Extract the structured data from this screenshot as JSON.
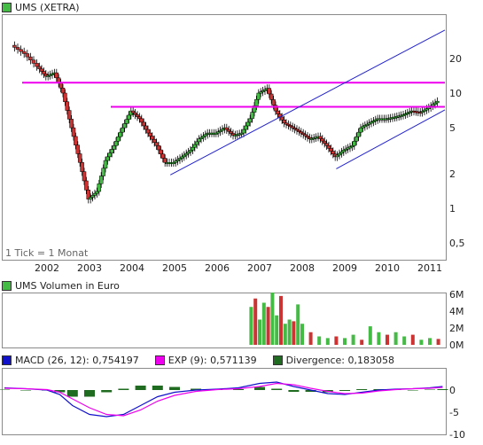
{
  "price_panel": {
    "legend": "UMS (XETRA)",
    "legend_color": "#44bb44",
    "note": "1 Tick = 1 Monat",
    "x_ticks": [
      "2002",
      "2003",
      "2004",
      "2005",
      "2006",
      "2007",
      "2008",
      "2009",
      "2010",
      "2011"
    ],
    "y_ticks": [
      "20",
      "10",
      "5",
      "2",
      "1",
      "0,5"
    ]
  },
  "volume_panel": {
    "legend": "UMS Volumen in Euro",
    "legend_color": "#44bb44",
    "y_ticks": [
      "6M",
      "4M",
      "2M",
      "0M"
    ]
  },
  "macd_panel": {
    "legend_items": [
      {
        "label": "MACD (26, 12): 0,754197",
        "color": "#1111cc"
      },
      {
        "label": "EXP (9): 0,571139",
        "color": "#ee00ee"
      },
      {
        "label": "Divergence: 0,183058",
        "color": "#1f6b1f"
      }
    ],
    "y_ticks": [
      "0",
      "-5",
      "-10"
    ]
  },
  "chart_data": [
    {
      "type": "candlestick",
      "title": "UMS (XETRA)",
      "scale": "log",
      "ylim": [
        0.4,
        40
      ],
      "x_categories": [
        "2002",
        "2003",
        "2004",
        "2005",
        "2006",
        "2007",
        "2008",
        "2009",
        "2010",
        "2011"
      ],
      "colors": {
        "up": "#44bb44",
        "down": "#cc3333"
      },
      "monthly_close": [
        [
          2001.2,
          26
        ],
        [
          2001.5,
          22
        ],
        [
          2001.8,
          17
        ],
        [
          2002.0,
          14
        ],
        [
          2002.2,
          15
        ],
        [
          2002.4,
          10
        ],
        [
          2002.6,
          5
        ],
        [
          2002.8,
          2.5
        ],
        [
          2003.0,
          1.2
        ],
        [
          2003.2,
          1.4
        ],
        [
          2003.4,
          2.6
        ],
        [
          2003.6,
          3.5
        ],
        [
          2003.8,
          5
        ],
        [
          2004.0,
          7
        ],
        [
          2004.2,
          6
        ],
        [
          2004.4,
          4.5
        ],
        [
          2004.6,
          3.5
        ],
        [
          2004.8,
          2.5
        ],
        [
          2005.0,
          2.5
        ],
        [
          2005.2,
          2.8
        ],
        [
          2005.4,
          3.2
        ],
        [
          2005.6,
          4
        ],
        [
          2005.8,
          4.5
        ],
        [
          2006.0,
          4.5
        ],
        [
          2006.2,
          5
        ],
        [
          2006.4,
          4.3
        ],
        [
          2006.6,
          4.5
        ],
        [
          2006.8,
          6
        ],
        [
          2007.0,
          10
        ],
        [
          2007.2,
          11
        ],
        [
          2007.4,
          7
        ],
        [
          2007.6,
          5.5
        ],
        [
          2007.8,
          5
        ],
        [
          2008.0,
          4.5
        ],
        [
          2008.2,
          4
        ],
        [
          2008.4,
          4.2
        ],
        [
          2008.6,
          3.5
        ],
        [
          2008.8,
          2.8
        ],
        [
          2009.0,
          3.2
        ],
        [
          2009.2,
          3.5
        ],
        [
          2009.4,
          5
        ],
        [
          2009.6,
          5.5
        ],
        [
          2009.8,
          6
        ],
        [
          2010.0,
          6
        ],
        [
          2010.2,
          6.2
        ],
        [
          2010.4,
          6.5
        ],
        [
          2010.6,
          7
        ],
        [
          2010.8,
          6.8
        ],
        [
          2011.0,
          7.5
        ],
        [
          2011.2,
          8.5
        ]
      ],
      "horizontal_lines": [
        {
          "y": 12.3,
          "color": "#ee00ee"
        },
        {
          "y": 7.6,
          "color": "#ee00ee"
        }
      ],
      "trend_lines": [
        {
          "from": [
            2004.9,
            1.95
          ],
          "to": [
            2011.9,
            45
          ],
          "color": "#2222cc"
        },
        {
          "from": [
            2008.8,
            2.2
          ],
          "to": [
            2011.6,
            8
          ],
          "color": "#2222cc"
        }
      ]
    },
    {
      "type": "bar",
      "title": "UMS Volumen in Euro",
      "unit": "M",
      "ylim": [
        0,
        6
      ],
      "colors": {
        "up": "#44bb44",
        "down": "#cc3333"
      },
      "values": [
        [
          2006.8,
          4.5
        ],
        [
          2006.9,
          5.5
        ],
        [
          2007.0,
          3.0
        ],
        [
          2007.1,
          5.0
        ],
        [
          2007.2,
          4.5
        ],
        [
          2007.3,
          6.2
        ],
        [
          2007.4,
          3.5
        ],
        [
          2007.5,
          5.8
        ],
        [
          2007.6,
          2.5
        ],
        [
          2007.7,
          3.0
        ],
        [
          2007.8,
          2.8
        ],
        [
          2007.9,
          4.8
        ],
        [
          2008.0,
          2.5
        ],
        [
          2008.2,
          1.5
        ],
        [
          2008.4,
          1.0
        ],
        [
          2008.6,
          0.8
        ],
        [
          2008.8,
          1.0
        ],
        [
          2009.0,
          0.8
        ],
        [
          2009.2,
          1.2
        ],
        [
          2009.4,
          0.6
        ],
        [
          2009.6,
          2.2
        ],
        [
          2009.8,
          1.5
        ],
        [
          2010.0,
          1.2
        ],
        [
          2010.2,
          1.5
        ],
        [
          2010.4,
          1.0
        ],
        [
          2010.6,
          1.2
        ],
        [
          2010.8,
          0.6
        ],
        [
          2011.0,
          0.8
        ],
        [
          2011.2,
          0.7
        ]
      ]
    },
    {
      "type": "line",
      "title": "MACD",
      "ylim": [
        -10,
        2
      ],
      "series": [
        {
          "name": "MACD (26, 12): 0,754197",
          "color": "#1111cc",
          "x": [
            2001.0,
            2001.5,
            2002.0,
            2002.3,
            2002.6,
            2003.0,
            2003.4,
            2003.8,
            2004.2,
            2004.6,
            2005.0,
            2005.5,
            2006.0,
            2006.5,
            2007.0,
            2007.4,
            2007.8,
            2008.2,
            2008.6,
            2009.0,
            2009.4,
            2009.8,
            2010.2,
            2010.6,
            2011.0,
            2011.3
          ],
          "y": [
            0.5,
            0.3,
            0,
            -1,
            -3.5,
            -5.5,
            -6,
            -5.5,
            -3.5,
            -1.5,
            -0.5,
            0,
            0.2,
            0.5,
            1.5,
            1.8,
            0.8,
            0,
            -0.8,
            -1,
            -0.5,
            0,
            0.2,
            0.3,
            0.5,
            0.8
          ]
        },
        {
          "name": "EXP (9): 0,571139",
          "color": "#ee00ee",
          "x": [
            2001.0,
            2001.5,
            2002.0,
            2002.3,
            2002.6,
            2003.0,
            2003.4,
            2003.8,
            2004.2,
            2004.6,
            2005.0,
            2005.5,
            2006.0,
            2006.5,
            2007.0,
            2007.4,
            2007.8,
            2008.2,
            2008.6,
            2009.0,
            2009.4,
            2009.8,
            2010.2,
            2010.6,
            2011.0,
            2011.3
          ],
          "y": [
            0.4,
            0.3,
            0.1,
            -0.5,
            -2,
            -4,
            -5.5,
            -5.8,
            -4.5,
            -2.5,
            -1.2,
            -0.3,
            0.1,
            0.3,
            0.8,
            1.5,
            1.2,
            0.4,
            -0.3,
            -0.8,
            -0.7,
            -0.2,
            0.1,
            0.3,
            0.4,
            0.6
          ]
        },
        {
          "name": "Divergence: 0,183058",
          "color": "#1f6b1f",
          "type": "bar",
          "x": [
            2001.0,
            2001.5,
            2002.0,
            2002.3,
            2002.6,
            2003.0,
            2003.4,
            2003.8,
            2004.2,
            2004.6,
            2005.0,
            2005.5,
            2006.0,
            2006.5,
            2007.0,
            2007.4,
            2007.8,
            2008.2,
            2008.6,
            2009.0,
            2009.4,
            2009.8,
            2010.2,
            2010.6,
            2011.0,
            2011.3
          ],
          "y": [
            0.1,
            0,
            -0.1,
            -0.5,
            -1.5,
            -1.5,
            -0.5,
            0.3,
            1.0,
            1.0,
            0.7,
            0.3,
            0.1,
            0.2,
            0.7,
            0.3,
            -0.4,
            -0.4,
            -0.5,
            -0.2,
            0.2,
            0.2,
            0.1,
            0,
            0.1,
            0.2
          ]
        }
      ]
    }
  ]
}
